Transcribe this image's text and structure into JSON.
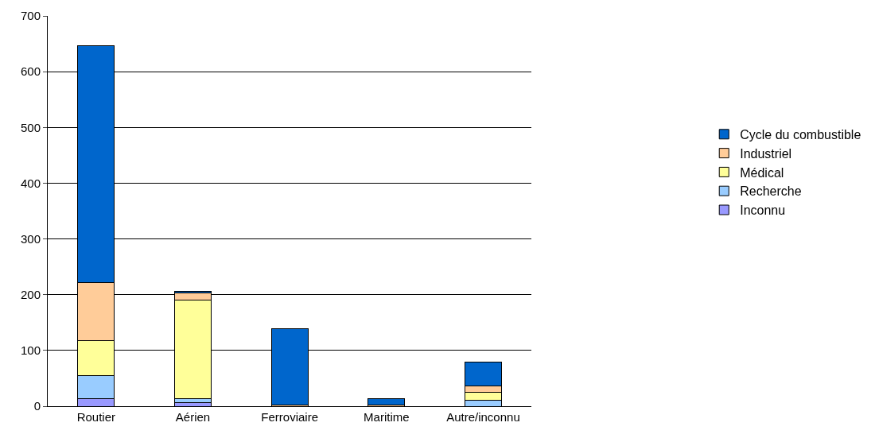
{
  "chart_data": {
    "type": "bar",
    "stacked": true,
    "categories": [
      "Routier",
      "Aérien",
      "Ferroviaire",
      "Maritime",
      "Autre/inconnu"
    ],
    "series": [
      {
        "name": "Inconnu",
        "color": "#9999ff",
        "values": [
          14,
          6,
          0,
          0,
          0
        ]
      },
      {
        "name": "Recherche",
        "color": "#99ccff",
        "values": [
          41,
          8,
          0,
          0,
          11
        ]
      },
      {
        "name": "Médical",
        "color": "#ffff99",
        "values": [
          63,
          176,
          0,
          0,
          14
        ]
      },
      {
        "name": "Industriel",
        "color": "#ffcc99",
        "values": [
          104,
          13,
          2,
          2,
          12
        ]
      },
      {
        "name": "Cycle du combustible",
        "color": "#0066cc",
        "values": [
          424,
          3,
          137,
          12,
          42
        ]
      }
    ],
    "ylim": [
      0,
      700
    ],
    "yticks": [
      0,
      100,
      200,
      300,
      400,
      500,
      600,
      700
    ],
    "grid": "y",
    "legend": "right"
  }
}
